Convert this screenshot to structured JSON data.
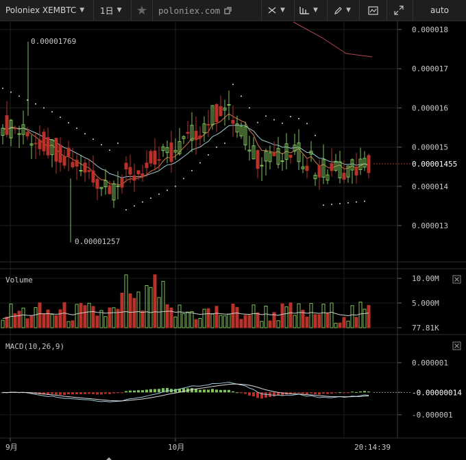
{
  "toolbar": {
    "symbol": "Poloniex XEMBTC",
    "interval": "1日",
    "site": "poloniex.com",
    "scale_mode": "auto",
    "icons": [
      "star-icon",
      "external-link-icon",
      "crosshair-icon",
      "indicators-icon",
      "pencil-icon",
      "screenshot-icon",
      "fullscreen-icon"
    ]
  },
  "price_pane": {
    "axis_labels": [
      "0.000018",
      "0.000017",
      "0.000016",
      "0.000015",
      "0.000014",
      "0.000013"
    ],
    "axis_values": [
      1.8e-05,
      1.7e-05,
      1.6e-05,
      1.5e-05,
      1.4e-05,
      1.3e-05
    ],
    "last_price": "0.00001455",
    "last_value": 1.455e-05,
    "high_label": "0.00001769",
    "low_label": "0.00001257"
  },
  "volume_pane": {
    "title": "Volume",
    "axis_labels": [
      "10.00M",
      "5.000M",
      "77.81K"
    ],
    "axis_values": [
      10000000,
      5000000,
      77810
    ]
  },
  "macd_pane": {
    "title": "MACD(10,26,9)",
    "axis_labels": [
      "0.000001",
      "-0.00000014",
      "-0.000001"
    ],
    "axis_values": [
      1e-06,
      -1.4e-07,
      -1e-06
    ]
  },
  "time_axis": {
    "labels": [
      "9月",
      "10月"
    ],
    "current_time": "20:14:39"
  },
  "colors": {
    "up": "#7ec45c",
    "down": "#b8322a",
    "background": "#000000",
    "toolbar": "#1e1e1e",
    "ema_fast": "#d97a4a",
    "ema_slow": "#9ecbd6",
    "sar": "#dcdcdc",
    "trend": "#b0484f"
  }
}
